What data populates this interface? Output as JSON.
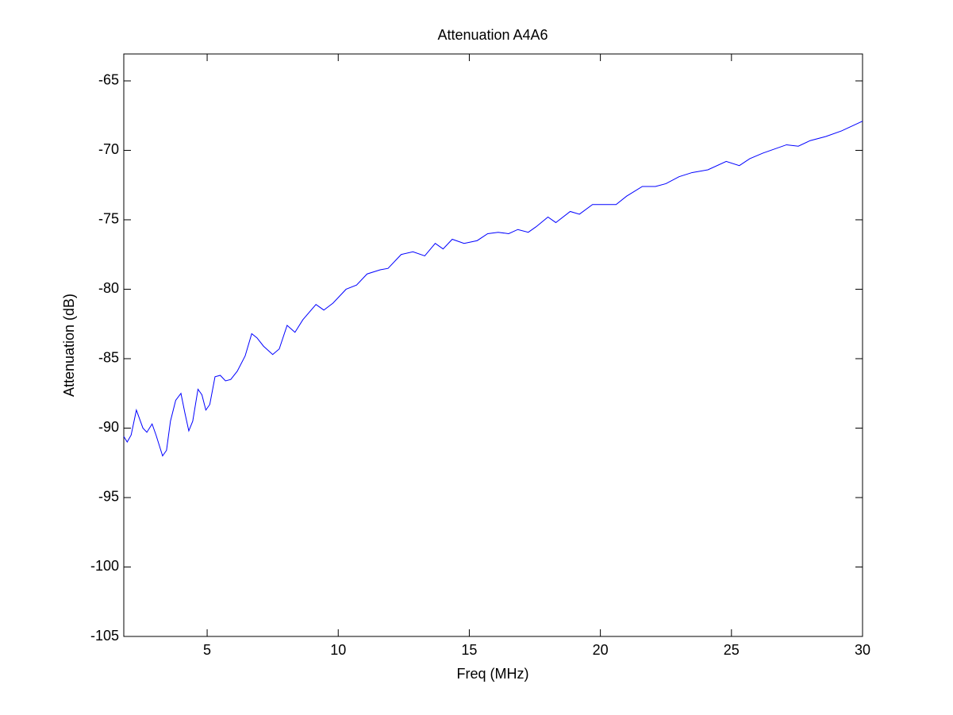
{
  "chart_data": {
    "type": "line",
    "title": "Attenuation A4A6",
    "xlabel": "Freq (MHz)",
    "ylabel": "Attenuation (dB)",
    "xlim": [
      1.82,
      30
    ],
    "ylim": [
      -105,
      -63.06
    ],
    "xticks": [
      5,
      10,
      15,
      20,
      25,
      30
    ],
    "yticks": [
      -105,
      -100,
      -95,
      -90,
      -85,
      -80,
      -75,
      -70,
      -65
    ],
    "grid": false,
    "series": [
      {
        "name": "Attenuation",
        "color": "#0000ff",
        "x": [
          1.82,
          1.95,
          2.1,
          2.3,
          2.55,
          2.7,
          2.9,
          3.05,
          3.3,
          3.45,
          3.6,
          3.8,
          4.0,
          4.15,
          4.3,
          4.45,
          4.65,
          4.8,
          4.95,
          5.1,
          5.3,
          5.5,
          5.7,
          5.9,
          6.15,
          6.45,
          6.7,
          6.9,
          7.15,
          7.5,
          7.75,
          8.05,
          8.35,
          8.65,
          9.15,
          9.45,
          9.8,
          10.3,
          10.7,
          11.1,
          11.6,
          11.9,
          12.4,
          12.85,
          13.3,
          13.7,
          14.0,
          14.35,
          14.8,
          15.3,
          15.7,
          16.1,
          16.5,
          16.85,
          17.25,
          17.55,
          18.0,
          18.3,
          18.85,
          19.2,
          19.7,
          20.1,
          20.6,
          21.0,
          21.6,
          22.1,
          22.5,
          23.0,
          23.5,
          24.1,
          24.8,
          25.3,
          25.7,
          26.2,
          27.1,
          27.55,
          28.0,
          28.6,
          29.2,
          30
        ],
        "values": [
          -90.6,
          -91.0,
          -90.5,
          -88.7,
          -90.0,
          -90.3,
          -89.7,
          -90.5,
          -92.0,
          -91.6,
          -89.5,
          -88.0,
          -87.5,
          -88.9,
          -90.2,
          -89.5,
          -87.2,
          -87.6,
          -88.7,
          -88.3,
          -86.3,
          -86.2,
          -86.6,
          -86.5,
          -85.9,
          -84.8,
          -83.2,
          -83.5,
          -84.1,
          -84.7,
          -84.3,
          -82.6,
          -83.1,
          -82.2,
          -81.1,
          -81.5,
          -81.0,
          -80.0,
          -79.7,
          -78.9,
          -78.6,
          -78.5,
          -77.5,
          -77.3,
          -77.6,
          -76.7,
          -77.1,
          -76.4,
          -76.7,
          -76.5,
          -76.0,
          -75.9,
          -76.0,
          -75.7,
          -75.9,
          -75.5,
          -74.8,
          -75.2,
          -74.4,
          -74.6,
          -73.9,
          -73.9,
          -73.9,
          -73.3,
          -72.6,
          -72.6,
          -72.4,
          -71.9,
          -71.6,
          -71.4,
          -70.8,
          -71.1,
          -70.6,
          -70.2,
          -69.6,
          -69.7,
          -69.3,
          -69.0,
          -68.6,
          -67.9
        ]
      }
    ]
  }
}
